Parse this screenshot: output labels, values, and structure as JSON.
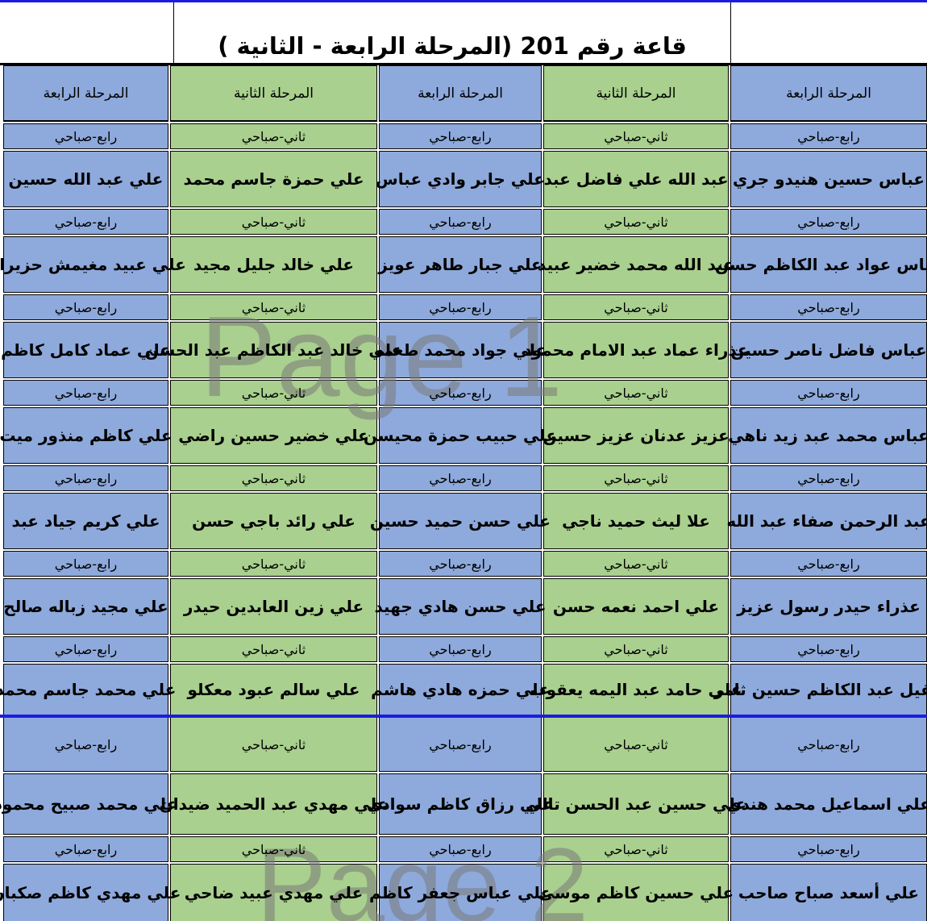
{
  "title": "قاعة رقم 201 (المرحلة الرابعة - الثانية )",
  "watermarks": {
    "page1": "Page 1",
    "page2": "Page 2"
  },
  "colors": {
    "stage4_blue": "#8EA9DB",
    "stage2_green": "#A9D08E",
    "page_break_line_blue": "#1c1ce0",
    "watermark_gray": "#7a7a7a",
    "border_black": "#000000"
  },
  "columns": [
    {
      "header": "المرحلة الرابعة",
      "session_label": "رابع-صباحي",
      "names": [
        "عباس حسين هنيدو جري",
        "عباس عواد عبد الكاظم حسن",
        "عباس فاضل ناصر حسين",
        "عباس محمد عبد زيد ناهي",
        "عبد الرحمن صفاء عبد الله",
        "عذراء حيدر رسول عزيز",
        "عقيل عبد الكاظم حسين ثامر",
        "علي اسماعيل محمد هندي",
        "علي أسعد صباح صاحب"
      ]
    },
    {
      "header": "المرحلة الثانية",
      "session_label": "ثاني-صباحي",
      "names": [
        "عبد الله علي فاضل عبد",
        "عبد الله محمد خضير عبيد",
        "عذراء عماد عبد الامام محمود",
        "عزيز عدنان عزيز حسين",
        "علا ليث حميد ناجي",
        "علي احمد نعمه حسن",
        "علي حامد عبد اليمه يعقوب",
        "علي حسين عبد الحسن تالي",
        "علي حسين كاظم موسى"
      ]
    },
    {
      "header": "المرحلة الرابعة",
      "session_label": "رابع-صباحي",
      "names": [
        "علي جابر وادي عباس",
        "علي جبار طاهر عويز",
        "علي جواد محمد طعمه",
        "علي حبيب حمزة محيسن",
        "علي حسن حميد حسين",
        "علي حسن هادي جهيد",
        "علي حمزه هادي هاشم",
        "علي رزاق كاظم سوادي",
        "علي عباس جعفر كاظم"
      ]
    },
    {
      "header": "المرحلة الثانية",
      "session_label": "ثاني-صباحي",
      "names": [
        "علي حمزة جاسم محمد",
        "علي خالد جليل مجيد",
        "علي خالد عبد الكاظم عبد الحسن",
        "علي خضير حسين راضي",
        "علي رائد باجي حسن",
        "علي زين العابدين حيدر",
        "علي سالم عبود معكلو",
        "علي مهدي عبد الحميد ضيدان",
        "علي مهدي عبيد ضاحي"
      ]
    },
    {
      "header": "المرحلة الرابعة",
      "session_label": "رابع-صباحي",
      "names": [
        "علي عبد الله حسين",
        "علي عبيد مغيمش حزيران",
        "علي عماد كامل كاظم",
        "علي كاظم منذور ميت",
        "علي كريم جياد عبد",
        "علي مجيد زباله صالح",
        "علي محمد جاسم محمد",
        "علي محمد صبيح محمود",
        "علي مهدي كاظم صكبان"
      ]
    }
  ]
}
